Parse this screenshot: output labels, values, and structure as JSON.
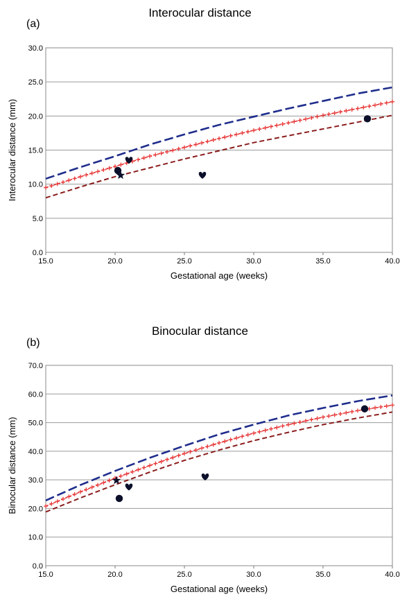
{
  "chart_data": [
    {
      "type": "line",
      "panel_label": "(a)",
      "title": "Interocular distance",
      "xlabel": "Gestational age (weeks)",
      "ylabel": "Interocular distance (mm)",
      "xlim": [
        15,
        40
      ],
      "ylim": [
        0,
        30
      ],
      "x_ticks": [
        "15.0",
        "20.0",
        "25.0",
        "30.0",
        "35.0",
        "40.0"
      ],
      "y_ticks": [
        "0.0",
        "5.0",
        "10.0",
        "15.0",
        "20.0",
        "25.0",
        "30.0"
      ],
      "grid": "horizontal",
      "x": [
        15,
        17.5,
        20,
        22.5,
        25,
        27.5,
        30,
        32.5,
        35,
        37.5,
        40
      ],
      "series": [
        {
          "style": "long-dash",
          "color": "#1f2d8c",
          "values": [
            10.8,
            12.5,
            14.1,
            15.8,
            17.3,
            18.7,
            19.9,
            21.1,
            22.2,
            23.3,
            24.2
          ]
        },
        {
          "style": "star-marker-line",
          "color": "#e83b3b",
          "values": [
            9.5,
            11.1,
            12.6,
            14.1,
            15.4,
            16.7,
            17.9,
            19.0,
            20.1,
            21.1,
            22.1
          ]
        },
        {
          "style": "short-dash",
          "color": "#8b1c1c",
          "values": [
            8.0,
            9.6,
            11.1,
            12.4,
            13.7,
            14.9,
            16.1,
            17.1,
            18.1,
            19.1,
            20.1
          ]
        }
      ],
      "points": [
        {
          "marker": "circle",
          "x": 20.2,
          "y": 12.0
        },
        {
          "marker": "star",
          "x": 20.4,
          "y": 11.3
        },
        {
          "marker": "heart",
          "x": 21.0,
          "y": 13.5
        },
        {
          "marker": "heart",
          "x": 26.3,
          "y": 11.3
        },
        {
          "marker": "circle",
          "x": 38.2,
          "y": 19.6
        }
      ]
    },
    {
      "type": "line",
      "panel_label": "(b)",
      "title": "Binocular distance",
      "xlabel": "Gestational age (weeks)",
      "ylabel": "Binocular distance (mm)",
      "xlim": [
        15,
        40
      ],
      "ylim": [
        0,
        70
      ],
      "x_ticks": [
        "15.0",
        "20.0",
        "25.0",
        "30.0",
        "35.0",
        "40.0"
      ],
      "y_ticks": [
        "0.0",
        "10.0",
        "20.0",
        "30.0",
        "40.0",
        "50.0",
        "60.0",
        "70.0"
      ],
      "grid": "horizontal",
      "x": [
        15,
        17.5,
        20,
        22.5,
        25,
        27.5,
        30,
        32.5,
        35,
        37.5,
        40
      ],
      "series": [
        {
          "style": "long-dash",
          "color": "#1f2d8c",
          "values": [
            22.8,
            28.2,
            33.1,
            37.7,
            41.9,
            45.9,
            49.3,
            52.5,
            55.1,
            57.5,
            59.5
          ]
        },
        {
          "style": "star-marker-line",
          "color": "#e83b3b",
          "values": [
            20.8,
            25.8,
            30.6,
            35.0,
            39.2,
            42.9,
            46.3,
            49.3,
            51.9,
            54.2,
            56.1
          ]
        },
        {
          "style": "short-dash",
          "color": "#8b1c1c",
          "values": [
            18.8,
            23.7,
            28.3,
            32.7,
            36.8,
            40.4,
            43.7,
            46.6,
            49.3,
            51.6,
            53.7
          ]
        }
      ],
      "points": [
        {
          "marker": "star",
          "x": 20.1,
          "y": 29.8
        },
        {
          "marker": "circle",
          "x": 20.3,
          "y": 23.5
        },
        {
          "marker": "heart",
          "x": 21.0,
          "y": 27.5
        },
        {
          "marker": "heart",
          "x": 26.5,
          "y": 31.0
        },
        {
          "marker": "circle",
          "x": 38.0,
          "y": 54.8
        }
      ]
    }
  ]
}
